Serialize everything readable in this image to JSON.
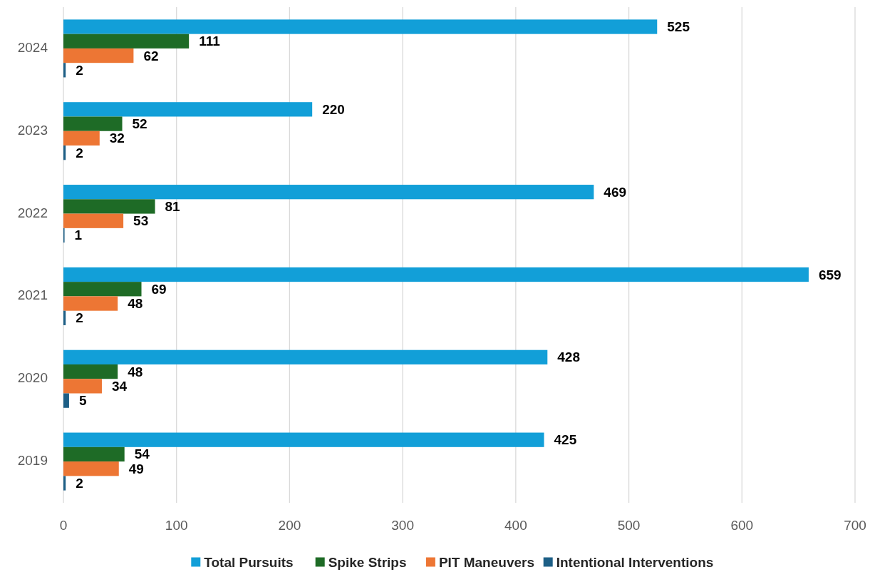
{
  "chart_data": {
    "type": "bar",
    "orientation": "horizontal",
    "categories": [
      "2024",
      "2023",
      "2022",
      "2021",
      "2020",
      "2019"
    ],
    "series": [
      {
        "name": "Total Pursuits",
        "color": "#129fd8",
        "values": [
          525,
          220,
          469,
          659,
          428,
          425
        ]
      },
      {
        "name": "Spike Strips",
        "color": "#1e6b26",
        "values": [
          111,
          52,
          81,
          69,
          48,
          54
        ]
      },
      {
        "name": "PIT Maneuvers",
        "color": "#ed7634",
        "values": [
          62,
          32,
          53,
          48,
          34,
          49
        ]
      },
      {
        "name": "Intentional Interventions",
        "color": "#1d5f86",
        "values": [
          2,
          2,
          1,
          2,
          5,
          2
        ]
      }
    ],
    "xlim": [
      0,
      700
    ],
    "xticks": [
      0,
      100,
      200,
      300,
      400,
      500,
      600,
      700
    ],
    "grid": "x",
    "legend": "bottom",
    "data_labels": true
  }
}
